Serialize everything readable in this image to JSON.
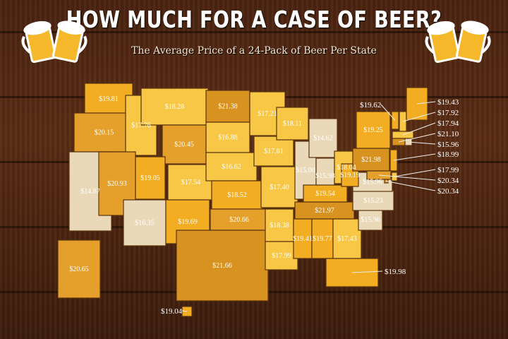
{
  "header": {
    "title": "HOW MUCH FOR A CASE OF BEER?",
    "subtitle": "The Average Price of a 24-Pack of Beer Per State",
    "icons": [
      "beer-mugs-icon-left",
      "beer-mugs-icon-right"
    ]
  },
  "colors": {
    "low": "#ead9b8",
    "mid": "#f6c23c",
    "high": "#dc951f",
    "border": "#5a3410",
    "background": "#4f2712"
  },
  "states": {
    "WA": "$19.81",
    "OR": "$20.15",
    "CA": "$14.87",
    "ID": "$17.76",
    "MT": "$18.28",
    "WY": "$20.45",
    "NV": "$20.93",
    "UT": "$19.05",
    "CO": "$17.54",
    "AZ": "$16.35",
    "NM": "$19.69",
    "ND": "$21.38",
    "SD": "$16.88",
    "NE": "$16.62",
    "KS": "$18.52",
    "OK": "$20.66",
    "TX": "$21.66",
    "MN": "$17.21",
    "IA": "$17.81",
    "MO": "$17.40",
    "AR": "$18.38",
    "LA": "$17.99",
    "WI": "$18.11",
    "IL": "$15.00",
    "MI": "$14.62",
    "IN": "$15.98",
    "OH": "$18.04",
    "KY": "$19.54",
    "TN": "$21.97",
    "MS": "$19.41",
    "AL": "$19.77",
    "GA": "$17.43",
    "FL": "$19.98",
    "SC": "$15.96",
    "NC": "$15.23",
    "VA": "$15.96",
    "WV": "$19.19",
    "PA": "$21.98",
    "NY": "$19.25",
    "VT": "$19.62",
    "ME": "$19.43",
    "NH": "$17.92",
    "MA": "$17.94",
    "CT": "$21.10",
    "RI": "$15.96",
    "NJ": "$18.99",
    "DE": "$17.99",
    "MD": "$20.34",
    "DC": "$20.34",
    "AK": "$20.65",
    "HI": "$19.04"
  }
}
